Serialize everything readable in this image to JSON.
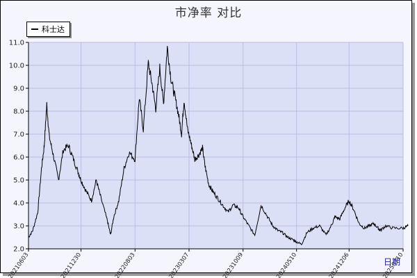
{
  "chart_data": {
    "type": "line",
    "title": "市净率  对比",
    "xlabel": "日期",
    "ylabel": "",
    "ylim": [
      2.0,
      11.0
    ],
    "grid": true,
    "legend_placement": "top-left",
    "y_ticks": [
      "2.0",
      "3.0",
      "4.0",
      "5.0",
      "6.0",
      "7.0",
      "8.0",
      "9.0",
      "10.0",
      "11.0"
    ],
    "x_tick_labels": [
      "20210603",
      "20211230",
      "20220803",
      "20230307",
      "20231009",
      "20240510",
      "20241206",
      "20250710"
    ],
    "series": [
      {
        "name": "科士达",
        "color": "#000000",
        "x": [
          "2021-06-03",
          "2021-06-20",
          "2021-07-10",
          "2021-07-25",
          "2021-08-05",
          "2021-08-15",
          "2021-08-25",
          "2021-09-10",
          "2021-10-01",
          "2021-10-20",
          "2021-11-10",
          "2021-11-30",
          "2021-12-20",
          "2021-12-30",
          "2022-01-20",
          "2022-02-10",
          "2022-03-01",
          "2022-03-20",
          "2022-04-15",
          "2022-04-27",
          "2022-05-10",
          "2022-05-30",
          "2022-06-20",
          "2022-07-10",
          "2022-08-03",
          "2022-08-20",
          "2022-09-05",
          "2022-09-25",
          "2022-10-10",
          "2022-10-25",
          "2022-11-10",
          "2022-11-25",
          "2022-12-10",
          "2022-12-25",
          "2023-01-10",
          "2023-01-25",
          "2023-02-05",
          "2023-02-15",
          "2023-03-01",
          "2023-03-15",
          "2023-03-30",
          "2023-04-15",
          "2023-04-30",
          "2023-05-10",
          "2023-05-25",
          "2023-06-10",
          "2023-06-30",
          "2023-07-20",
          "2023-08-10",
          "2023-08-30",
          "2023-09-20",
          "2023-10-09",
          "2023-11-01",
          "2023-11-25",
          "2023-12-20",
          "2024-01-15",
          "2024-02-05",
          "2024-02-25",
          "2024-03-15",
          "2024-04-05",
          "2024-04-25",
          "2024-05-10",
          "2024-05-30",
          "2024-06-20",
          "2024-07-15",
          "2024-08-10",
          "2024-09-05",
          "2024-09-30",
          "2024-10-10",
          "2024-10-30",
          "2024-11-20",
          "2024-12-06",
          "2024-12-25",
          "2025-01-15",
          "2025-02-05",
          "2025-02-25",
          "2025-03-15",
          "2025-04-01",
          "2025-04-10",
          "2025-05-01",
          "2025-06-01",
          "2025-07-10",
          "2025-07-30"
        ],
        "values": [
          2.5,
          2.8,
          3.6,
          5.5,
          6.5,
          8.3,
          6.9,
          6.1,
          5.0,
          6.3,
          6.5,
          5.9,
          5.3,
          5.0,
          4.5,
          4.1,
          5.0,
          4.2,
          3.2,
          2.6,
          3.4,
          4.1,
          5.5,
          6.2,
          5.9,
          8.6,
          7.2,
          10.1,
          9.2,
          8.1,
          9.9,
          8.3,
          10.8,
          9.4,
          8.6,
          7.8,
          7.0,
          8.5,
          7.2,
          6.6,
          5.9,
          6.1,
          6.4,
          5.6,
          4.8,
          4.5,
          4.2,
          3.9,
          3.6,
          3.9,
          3.8,
          3.4,
          3.0,
          2.6,
          3.9,
          3.4,
          3.0,
          2.8,
          2.7,
          2.5,
          2.4,
          2.3,
          2.2,
          2.7,
          2.9,
          3.0,
          2.6,
          3.1,
          3.4,
          3.3,
          3.8,
          4.1,
          3.7,
          3.1,
          2.9,
          3.0,
          3.1,
          2.9,
          2.8,
          3.0,
          2.9,
          2.9,
          3.0
        ]
      }
    ]
  }
}
